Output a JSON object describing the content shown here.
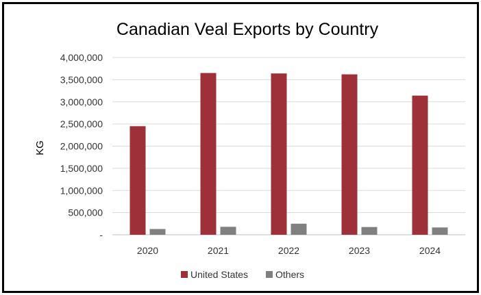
{
  "chart_data": {
    "type": "bar",
    "title": "Canadian Veal Exports by Country",
    "xlabel": "",
    "ylabel": "KG",
    "ylim": [
      0,
      4000000
    ],
    "yticks": [
      0,
      500000,
      1000000,
      1500000,
      2000000,
      2500000,
      3000000,
      3500000,
      4000000
    ],
    "ytick_labels": [
      "-",
      "500,000",
      "1,000,000",
      "1,500,000",
      "2,000,000",
      "2,500,000",
      "3,000,000",
      "3,500,000",
      "4,000,000"
    ],
    "categories": [
      "2020",
      "2021",
      "2022",
      "2023",
      "2024"
    ],
    "series": [
      {
        "name": "United States",
        "color": "#9e3039",
        "values": [
          2450000,
          3650000,
          3640000,
          3620000,
          3140000
        ]
      },
      {
        "name": "Others",
        "color": "#808080",
        "values": [
          130000,
          180000,
          250000,
          175000,
          165000
        ]
      }
    ],
    "grid": true,
    "legend_position": "bottom"
  }
}
